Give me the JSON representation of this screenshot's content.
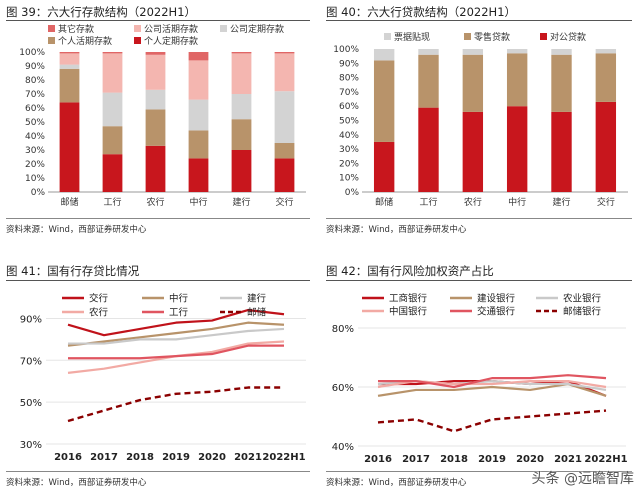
{
  "panels": [
    {
      "title": "图 39：六大行存款结构（2022H1）",
      "source": "资料来源：Wind，西部证券研发中心"
    },
    {
      "title": "图 40：六大行贷款结构（2022H1）",
      "source": "资料来源：Wind，西部证券研发中心"
    },
    {
      "title": "图 41：国有行存贷比情况",
      "source": "资料来源：Wind，西部证券研发中心"
    },
    {
      "title": "图 42：国有行风险加权资产占比",
      "source": "资料来源：Wind，西部证券研发中心"
    }
  ],
  "watermark": "头条 @远瞻智库",
  "chart_data": [
    {
      "type": "bar",
      "stacked": true,
      "categories": [
        "邮储",
        "工行",
        "农行",
        "中行",
        "建行",
        "交行"
      ],
      "ylim": [
        0,
        100
      ],
      "yticks": [
        "0%",
        "10%",
        "20%",
        "30%",
        "40%",
        "50%",
        "60%",
        "70%",
        "80%",
        "90%",
        "100%"
      ],
      "legend_position": "top-left",
      "series": [
        {
          "name": "个人定期存款",
          "color": "#c8161d",
          "values": [
            64,
            27,
            33,
            24,
            30,
            24
          ]
        },
        {
          "name": "个人活期存款",
          "color": "#b8936a",
          "values": [
            24,
            20,
            26,
            20,
            22,
            11
          ]
        },
        {
          "name": "公司定期存款",
          "color": "#d3d3d3",
          "values": [
            3,
            24,
            14,
            22,
            18,
            37
          ]
        },
        {
          "name": "公司活期存款",
          "color": "#f4b6b0",
          "values": [
            8,
            28,
            25,
            28,
            29,
            27
          ]
        },
        {
          "name": "其它存款",
          "color": "#e06666",
          "values": [
            1,
            1,
            2,
            6,
            1,
            1
          ]
        }
      ]
    },
    {
      "type": "bar",
      "stacked": true,
      "categories": [
        "邮储",
        "工行",
        "农行",
        "中行",
        "建行",
        "交行"
      ],
      "ylim": [
        0,
        100
      ],
      "yticks": [
        "0%",
        "10%",
        "20%",
        "30%",
        "40%",
        "50%",
        "60%",
        "70%",
        "80%",
        "90%",
        "100%"
      ],
      "legend_position": "top",
      "series": [
        {
          "name": "对公贷款",
          "color": "#c8161d",
          "values": [
            35,
            59,
            56,
            60,
            56,
            63
          ]
        },
        {
          "name": "零售贷款",
          "color": "#b8936a",
          "values": [
            57,
            37,
            40,
            37,
            40,
            34
          ]
        },
        {
          "name": "票据贴现",
          "color": "#d3d3d3",
          "values": [
            8,
            4,
            4,
            3,
            4,
            3
          ]
        }
      ]
    },
    {
      "type": "line",
      "x": [
        "2016",
        "2017",
        "2018",
        "2019",
        "2020",
        "2021",
        "2022H1"
      ],
      "ylim": [
        30,
        95
      ],
      "yticks": [
        "30%",
        "50%",
        "70%",
        "90%"
      ],
      "ytick_values": [
        30,
        50,
        70,
        90
      ],
      "legend_position": "top",
      "series": [
        {
          "name": "交行",
          "color": "#c0121a",
          "dash": false,
          "values": [
            87,
            82,
            85,
            88,
            89,
            94,
            92
          ]
        },
        {
          "name": "中行",
          "color": "#b8936a",
          "dash": false,
          "values": [
            77,
            79,
            81,
            83,
            85,
            88,
            87
          ]
        },
        {
          "name": "建行",
          "color": "#c9c9c9",
          "dash": false,
          "values": [
            78,
            78,
            80,
            80,
            82,
            84,
            85
          ]
        },
        {
          "name": "农行",
          "color": "#f2aaa4",
          "dash": false,
          "values": [
            64,
            66,
            69,
            72,
            74,
            78,
            79
          ]
        },
        {
          "name": "工行",
          "color": "#e05560",
          "dash": false,
          "values": [
            71,
            71,
            71,
            72,
            73,
            77,
            77
          ]
        },
        {
          "name": "邮储",
          "color": "#8b0000",
          "dash": true,
          "values": [
            41,
            46,
            51,
            54,
            55,
            57,
            57
          ]
        }
      ]
    },
    {
      "type": "line",
      "x": [
        "2016",
        "2017",
        "2018",
        "2019",
        "2020",
        "2021",
        "2022H1"
      ],
      "ylim": [
        40,
        80
      ],
      "yticks": [
        "40%",
        "60%",
        "80%"
      ],
      "ytick_values": [
        40,
        60,
        80
      ],
      "legend_position": "top",
      "series": [
        {
          "name": "工商银行",
          "color": "#c0121a",
          "dash": false,
          "values": [
            61,
            61,
            62,
            62,
            61,
            62,
            57
          ]
        },
        {
          "name": "建设银行",
          "color": "#b8936a",
          "dash": false,
          "values": [
            57,
            59,
            59,
            60,
            59,
            61,
            57
          ]
        },
        {
          "name": "农业银行",
          "color": "#c9c9c9",
          "dash": false,
          "values": [
            61,
            62,
            61,
            62,
            61,
            61,
            59
          ]
        },
        {
          "name": "中国银行",
          "color": "#f2aaa4",
          "dash": false,
          "values": [
            60,
            62,
            61,
            61,
            62,
            62,
            60
          ]
        },
        {
          "name": "交通银行",
          "color": "#e05560",
          "dash": false,
          "values": [
            62,
            62,
            60,
            63,
            63,
            64,
            63
          ]
        },
        {
          "name": "邮储银行",
          "color": "#8b0000",
          "dash": true,
          "values": [
            48,
            49,
            45,
            49,
            50,
            51,
            52
          ]
        }
      ]
    }
  ]
}
